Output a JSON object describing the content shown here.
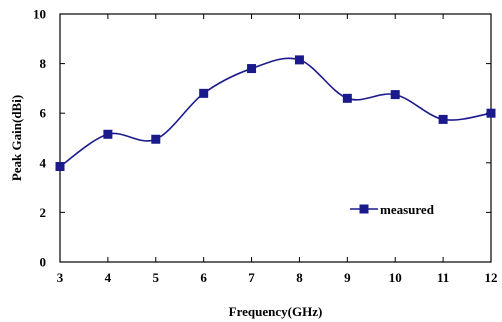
{
  "chart_data": {
    "type": "line",
    "xlabel": "Frequency(GHz)",
    "ylabel": "Peak Gain(dBi)",
    "xlim": [
      3,
      12
    ],
    "ylim": [
      0,
      10
    ],
    "xticks": [
      "3",
      "4",
      "5",
      "6",
      "7",
      "8",
      "9",
      "10",
      "11",
      "12"
    ],
    "yticks": [
      "0",
      "2",
      "4",
      "6",
      "8",
      "10"
    ],
    "grid": false,
    "legend_position": "lower-right",
    "series": [
      {
        "name": "measured",
        "color": "#1a1a8c",
        "marker": "square",
        "x": [
          3,
          4,
          5,
          6,
          7,
          8,
          9,
          10,
          11,
          12
        ],
        "y": [
          3.85,
          5.15,
          4.95,
          6.8,
          7.8,
          8.15,
          6.6,
          6.75,
          5.75,
          6.0
        ]
      }
    ]
  }
}
